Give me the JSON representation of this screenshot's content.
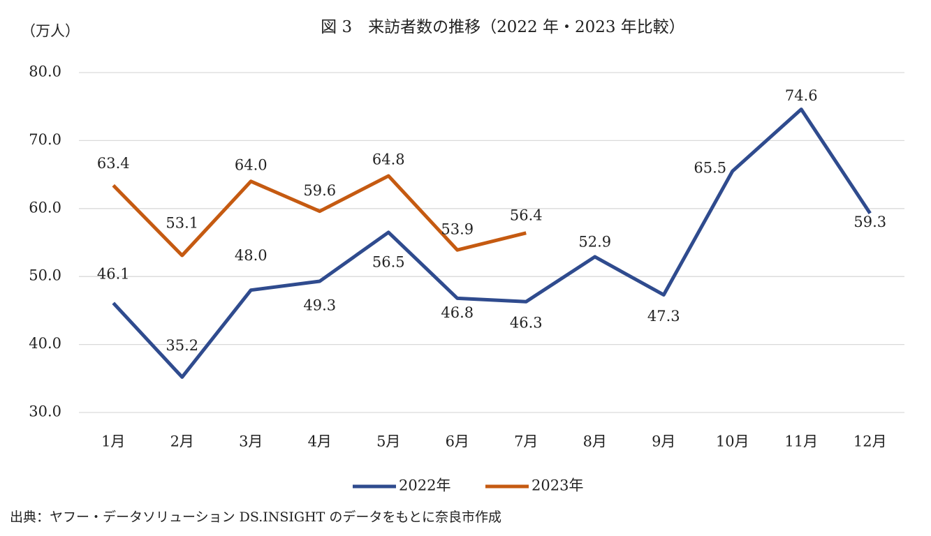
{
  "chart_data": {
    "type": "line",
    "title": "図 3　来訪者数の推移（2022 年・2023 年比較）",
    "y_axis_label": "（万人）",
    "source": "出典：ヤフー・データソリューション DS.INSIGHT のデータをもとに奈良市作成",
    "categories": [
      "1月",
      "2月",
      "3月",
      "4月",
      "5月",
      "6月",
      "7月",
      "8月",
      "9月",
      "10月",
      "11月",
      "12月"
    ],
    "series": [
      {
        "name": "2022年",
        "color": "#2f4b8e",
        "values": [
          46.1,
          35.2,
          48.0,
          49.3,
          56.5,
          46.8,
          46.3,
          52.9,
          47.3,
          65.5,
          74.6,
          59.3
        ],
        "value_labels": [
          "46.1",
          "35.2",
          "48.0",
          "49.3",
          "56.5",
          "46.8",
          "46.3",
          "52.9",
          "47.3",
          "65.5",
          "74.6",
          "59.3"
        ]
      },
      {
        "name": "2023年",
        "color": "#c55a11",
        "values": [
          63.4,
          53.1,
          64.0,
          59.6,
          64.8,
          53.9,
          56.4,
          null,
          null,
          null,
          null,
          null
        ],
        "value_labels": [
          "63.4",
          "53.1",
          "64.0",
          "59.6",
          "64.8",
          "53.9",
          "56.4",
          null,
          null,
          null,
          null,
          null
        ]
      }
    ],
    "ylim": [
      30,
      80
    ],
    "yticks": [
      {
        "value": 30,
        "label": "30.0"
      },
      {
        "value": 40,
        "label": "40.0"
      },
      {
        "value": 50,
        "label": "50.0"
      },
      {
        "value": 60,
        "label": "60.0"
      },
      {
        "value": 70,
        "label": "70.0"
      },
      {
        "value": 80,
        "label": "80.0"
      }
    ],
    "grid": true,
    "legend": "bottom"
  }
}
